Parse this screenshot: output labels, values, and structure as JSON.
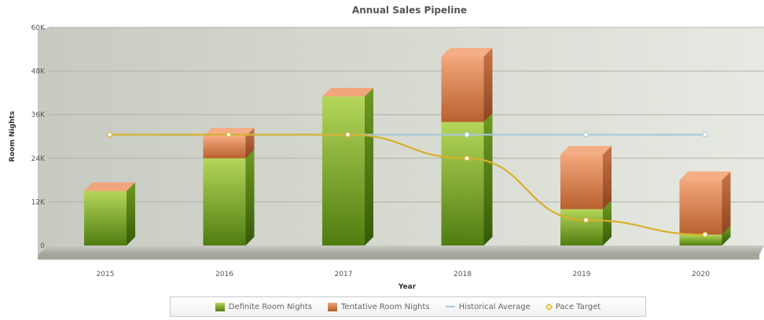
{
  "colors": {
    "definite_top": "#b5d65a",
    "definite_bottom": "#4f7d10",
    "tentative_top": "#f3a77c",
    "tentative_bottom": "#b55b2c",
    "historical": "#a9c7dc",
    "pace": "#d9b02b",
    "plot_bg_left": "#c8ccc2",
    "plot_bg_right": "#e6e9e1"
  },
  "chart_data": {
    "type": "bar",
    "stacked": true,
    "title": "Annual Sales Pipeline",
    "xlabel": "Year",
    "ylabel": "Room Nights",
    "ylim": [
      0,
      60000
    ],
    "yticks": [
      "0",
      "12K",
      "24K",
      "36K",
      "48K",
      "60K"
    ],
    "categories": [
      "2015",
      "2016",
      "2017",
      "2018",
      "2019",
      "2020"
    ],
    "grid": true,
    "legend_position": "bottom",
    "series": [
      {
        "name": "Definite Room Nights",
        "kind": "bar",
        "values": [
          15000,
          24000,
          41000,
          34000,
          10000,
          3000
        ]
      },
      {
        "name": "Tentative Room Nights",
        "kind": "bar",
        "values": [
          0,
          6000,
          0,
          18000,
          15000,
          15000
        ]
      },
      {
        "name": "Historical Average",
        "kind": "line",
        "values": [
          30500,
          30500,
          30500,
          30500,
          30500,
          30500
        ]
      },
      {
        "name": "Pace Target",
        "kind": "line",
        "values": [
          30500,
          30500,
          30500,
          24000,
          7000,
          3000
        ]
      }
    ]
  }
}
